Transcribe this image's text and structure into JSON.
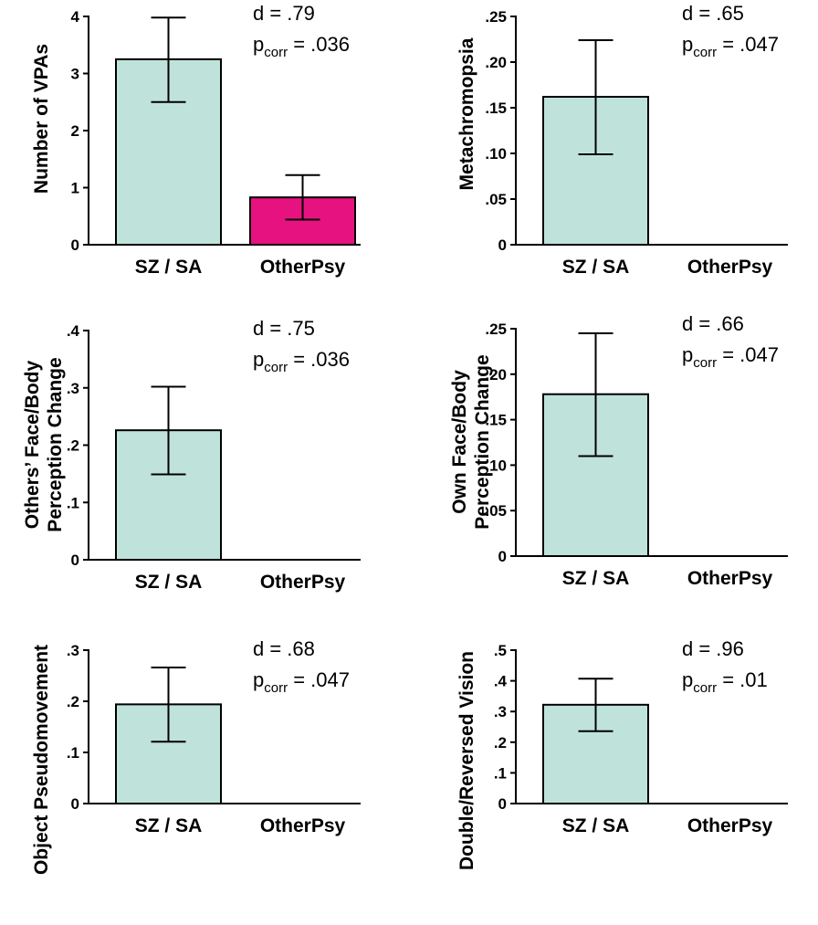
{
  "chart_data": [
    {
      "type": "bar",
      "ylabel": [
        "Number of VPAs"
      ],
      "categories": [
        "SZ / SA",
        "OtherPsy"
      ],
      "values": [
        3.25,
        0.83
      ],
      "errors": [
        [
          2.5,
          3.98
        ],
        [
          0.44,
          1.22
        ]
      ],
      "ylim": [
        0,
        4
      ],
      "yticks": [
        0,
        1,
        2,
        3,
        4
      ],
      "ytick_labels": [
        "0",
        "1",
        "2",
        "3",
        "4"
      ],
      "colors": [
        "#bfe3da",
        "#e5127f"
      ],
      "effect_size": "d = .79",
      "p_label": "p",
      "p_sub": "corr",
      "p_value": " = .036"
    },
    {
      "type": "bar",
      "ylabel": [
        "Metachromopsia"
      ],
      "categories": [
        "SZ / SA",
        "OtherPsy"
      ],
      "values": [
        0.162,
        0
      ],
      "errors": [
        [
          0.099,
          0.224
        ],
        null
      ],
      "ylim": [
        0,
        0.25
      ],
      "yticks": [
        0,
        0.05,
        0.1,
        0.15,
        0.2,
        0.25
      ],
      "ytick_labels": [
        "0",
        ".05",
        ".10",
        ".15",
        ".20",
        ".25"
      ],
      "colors": [
        "#bfe3da",
        "#bfe3da"
      ],
      "effect_size": "d = .65",
      "p_label": "p",
      "p_sub": "corr",
      "p_value": " = .047"
    },
    {
      "type": "bar",
      "ylabel": [
        "Others’ Face/Body",
        "Perception Change"
      ],
      "categories": [
        "SZ / SA",
        "OtherPsy"
      ],
      "values": [
        0.226,
        0
      ],
      "errors": [
        [
          0.149,
          0.302
        ],
        null
      ],
      "ylim": [
        0,
        0.4
      ],
      "yticks": [
        0,
        0.1,
        0.2,
        0.3,
        0.4
      ],
      "ytick_labels": [
        "0",
        ".1",
        ".2",
        ".3",
        ".4"
      ],
      "colors": [
        "#bfe3da",
        "#bfe3da"
      ],
      "effect_size": "d = .75",
      "p_label": "p",
      "p_sub": "corr",
      "p_value": " = .036"
    },
    {
      "type": "bar",
      "ylabel": [
        "Own Face/Body",
        "Perception Change"
      ],
      "categories": [
        "SZ / SA",
        "OtherPsy"
      ],
      "values": [
        0.178,
        0
      ],
      "errors": [
        [
          0.11,
          0.245
        ],
        null
      ],
      "ylim": [
        0,
        0.25
      ],
      "yticks": [
        0,
        0.05,
        0.1,
        0.15,
        0.2,
        0.25
      ],
      "ytick_labels": [
        "0",
        ".05",
        ".10",
        ".15",
        ".20",
        ".25"
      ],
      "colors": [
        "#bfe3da",
        "#bfe3da"
      ],
      "effect_size": "d = .66",
      "p_label": "p",
      "p_sub": "corr",
      "p_value": " = .047"
    },
    {
      "type": "bar",
      "ylabel": [
        "Object Pseudomovement"
      ],
      "categories": [
        "SZ / SA",
        "OtherPsy"
      ],
      "values": [
        0.194,
        0
      ],
      "errors": [
        [
          0.121,
          0.266
        ],
        null
      ],
      "ylim": [
        0,
        0.3
      ],
      "yticks": [
        0,
        0.1,
        0.2,
        0.3
      ],
      "ytick_labels": [
        "0",
        ".1",
        ".2",
        ".3"
      ],
      "colors": [
        "#bfe3da",
        "#bfe3da"
      ],
      "effect_size": "d = .68",
      "p_label": "p",
      "p_sub": "corr",
      "p_value": " = .047"
    },
    {
      "type": "bar",
      "ylabel": [
        "Double/Reversed Vision"
      ],
      "categories": [
        "SZ / SA",
        "OtherPsy"
      ],
      "values": [
        0.322,
        0
      ],
      "errors": [
        [
          0.236,
          0.407
        ],
        null
      ],
      "ylim": [
        0,
        0.5
      ],
      "yticks": [
        0,
        0.1,
        0.2,
        0.3,
        0.4,
        0.5
      ],
      "ytick_labels": [
        "0",
        ".1",
        ".2",
        ".3",
        ".4",
        ".5"
      ],
      "colors": [
        "#bfe3da",
        "#bfe3da"
      ],
      "effect_size": "d = .96",
      "p_label": "p",
      "p_sub": "corr",
      "p_value": " = .01"
    }
  ]
}
